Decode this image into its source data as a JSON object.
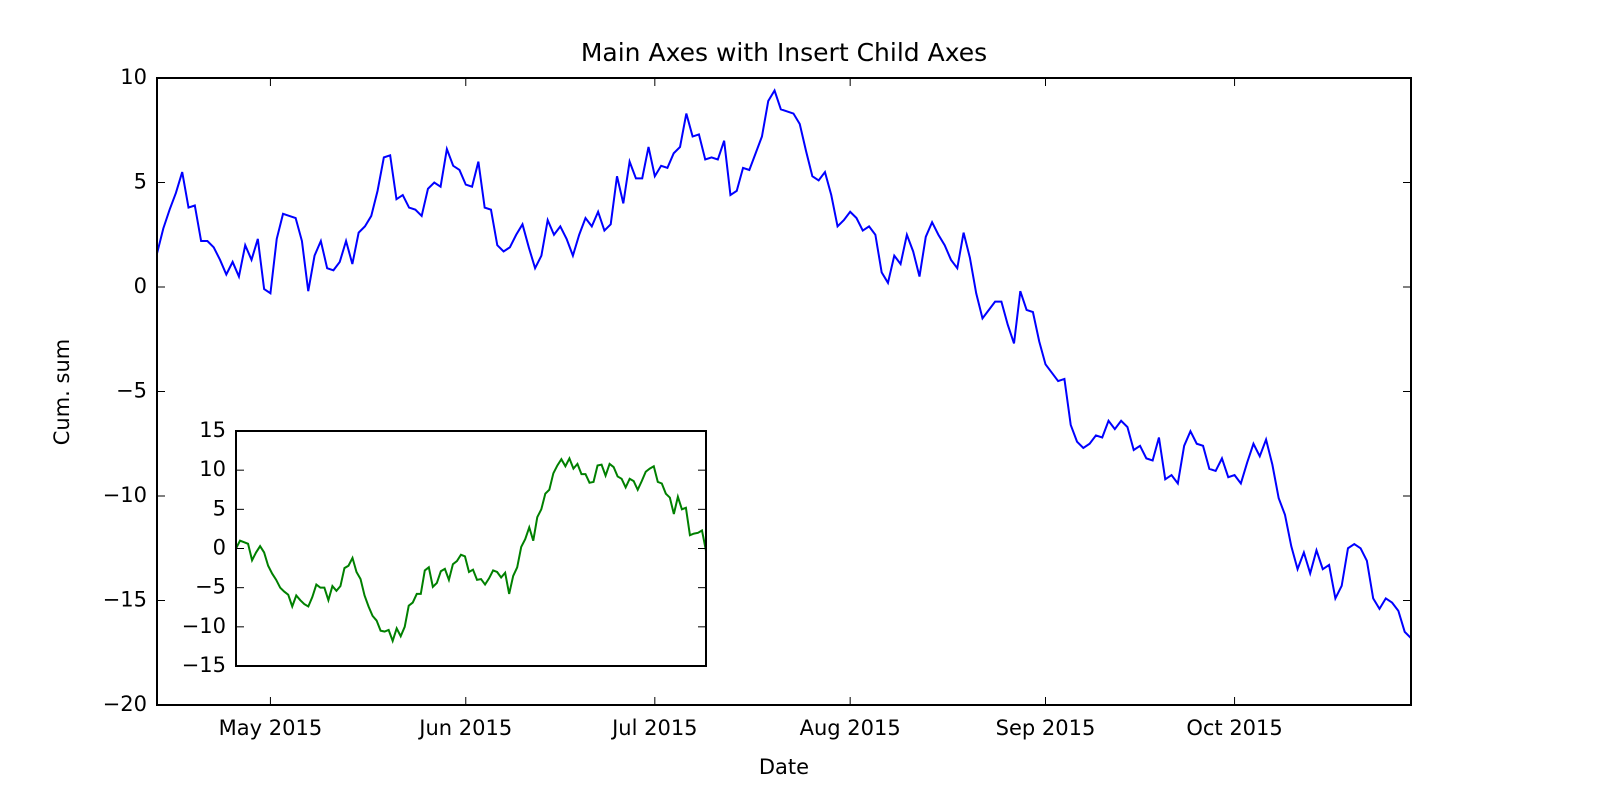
{
  "chart_data": [
    {
      "type": "line",
      "title": "Main Axes with Insert Child Axes",
      "xlabel": "Date",
      "ylabel": "Cum. sum",
      "series": [
        {
          "color": "#0000ff",
          "values": [
            1.6,
            2.8,
            3.7,
            4.5,
            5.5,
            3.8,
            3.9,
            2.2,
            2.2,
            1.9,
            1.3,
            0.6,
            1.2,
            0.5,
            2.0,
            1.3,
            2.3,
            -0.1,
            -0.3,
            2.3,
            3.5,
            3.4,
            3.3,
            2.2,
            -0.2,
            1.5,
            2.2,
            0.9,
            0.8,
            1.2,
            2.2,
            1.1,
            2.6,
            2.9,
            3.4,
            4.6,
            6.2,
            6.3,
            4.2,
            4.4,
            3.8,
            3.7,
            3.4,
            4.7,
            5.0,
            4.8,
            6.6,
            5.8,
            5.6,
            4.9,
            4.8,
            6.0,
            3.8,
            3.7,
            2.0,
            1.7,
            1.9,
            2.5,
            3.0,
            1.9,
            0.9,
            1.5,
            3.2,
            2.5,
            2.9,
            2.3,
            1.5,
            2.5,
            3.3,
            2.9,
            3.6,
            2.7,
            3.0,
            5.3,
            4.0,
            6.0,
            5.2,
            5.2,
            6.7,
            5.3,
            5.8,
            5.7,
            6.4,
            6.7,
            8.3,
            7.2,
            7.3,
            6.1,
            6.2,
            6.1,
            7.0,
            4.4,
            4.6,
            5.7,
            5.6,
            6.4,
            7.2,
            8.9,
            9.4,
            8.5,
            8.4,
            8.3,
            7.8,
            6.5,
            5.3,
            5.1,
            5.5,
            4.4,
            2.9,
            3.2,
            3.6,
            3.3,
            2.7,
            2.9,
            2.5,
            0.7,
            0.2,
            1.5,
            1.1,
            2.5,
            1.7,
            0.5,
            2.4,
            3.1,
            2.5,
            2.0,
            1.3,
            0.9,
            2.6,
            1.4,
            -0.3,
            -1.5,
            -1.1,
            -0.7,
            -0.7,
            -1.8,
            -2.7,
            -0.2,
            -1.1,
            -1.2,
            -2.6,
            -3.7,
            -4.1,
            -4.5,
            -4.4,
            -6.6,
            -7.4,
            -7.7,
            -7.5,
            -7.1,
            -7.2,
            -6.4,
            -6.8,
            -6.4,
            -6.7,
            -7.8,
            -7.6,
            -8.2,
            -8.3,
            -7.2,
            -9.2,
            -9.0,
            -9.4,
            -7.6,
            -6.9,
            -7.5,
            -7.6,
            -8.7,
            -8.8,
            -8.2,
            -9.1,
            -9.0,
            -9.4,
            -8.4,
            -7.5,
            -8.1,
            -7.3,
            -8.5,
            -10.1,
            -10.9,
            -12.4,
            -13.5,
            -12.7,
            -13.7,
            -12.6,
            -13.5,
            -13.3,
            -14.9,
            -14.3,
            -12.5,
            -12.3,
            -12.5,
            -13.1,
            -14.9,
            -15.4,
            -14.9,
            -15.1,
            -15.5,
            -16.5,
            -16.8
          ]
        }
      ],
      "xlim": [
        0,
        199
      ],
      "xticks": [
        {
          "value": 18,
          "label": "May 2015"
        },
        {
          "value": 49,
          "label": "Jun 2015"
        },
        {
          "value": 79,
          "label": "Jul 2015"
        },
        {
          "value": 110,
          "label": "Aug 2015"
        },
        {
          "value": 141,
          "label": "Sep 2015"
        },
        {
          "value": 171,
          "label": "Oct 2015"
        }
      ],
      "ylim": [
        -20,
        10
      ],
      "yticks": [
        10,
        5,
        0,
        {
          "value": -5,
          "label": "−5"
        },
        {
          "value": -10,
          "label": "−10"
        },
        {
          "value": -15,
          "label": "−15"
        },
        {
          "value": -20,
          "label": "−20"
        }
      ]
    },
    {
      "type": "line",
      "series": [
        {
          "color": "#008000",
          "values": [
            0,
            1,
            0.8,
            0.6,
            -1.5,
            -0.5,
            0.3,
            -0.5,
            -2.2,
            -3.2,
            -4,
            -5,
            -5.5,
            -5.9,
            -7.4,
            -6,
            -6.6,
            -7.1,
            -7.4,
            -6.2,
            -4.6,
            -5,
            -5,
            -6.6,
            -4.8,
            -5.4,
            -4.8,
            -2.5,
            -2.2,
            -1.2,
            -3,
            -3.9,
            -6,
            -7.4,
            -8.6,
            -9.2,
            -10.5,
            -10.6,
            -10.4,
            -11.8,
            -10.2,
            -11.2,
            -10,
            -7.3,
            -6.9,
            -5.8,
            -5.8,
            -2.8,
            -2.4,
            -4.9,
            -4.4,
            -2.9,
            -2.6,
            -4,
            -2,
            -1.6,
            -0.8,
            -1,
            -3,
            -2.7,
            -4,
            -3.9,
            -4.6,
            -3.8,
            -2.8,
            -3,
            -3.7,
            -3.1,
            -5.8,
            -3.5,
            -2.4,
            0.2,
            1.2,
            2.7,
            1,
            4,
            5,
            7,
            7.5,
            9.6,
            10.6,
            11.4,
            10.5,
            11.5,
            10.2,
            10.8,
            9.5,
            9.5,
            8.4,
            8.5,
            10.6,
            10.7,
            9.3,
            10.8,
            10.4,
            9.2,
            8.9,
            7.8,
            8.9,
            8.6,
            7.5,
            8.6,
            9.8,
            10.2,
            10.5,
            8.5,
            8.3,
            7,
            6.5,
            4.4,
            6.6,
            5,
            5.2,
            1.7,
            1.9,
            2,
            2.3,
            -0.3
          ]
        }
      ],
      "xlim": [
        0,
        117
      ],
      "ylim": [
        -15,
        15
      ],
      "yticks": [
        15,
        10,
        5,
        0,
        {
          "value": -5,
          "label": "−5"
        },
        {
          "value": -10,
          "label": "−10"
        },
        {
          "value": -15,
          "label": "−15"
        }
      ]
    }
  ]
}
